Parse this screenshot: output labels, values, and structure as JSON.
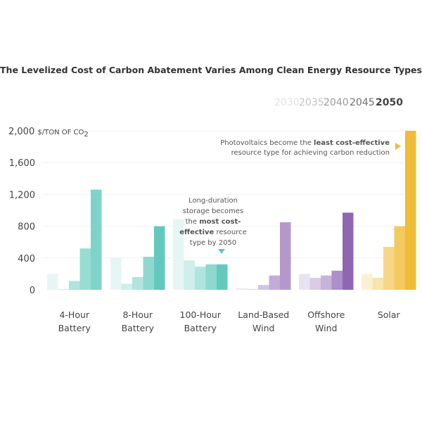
{
  "chart_data": {
    "type": "bar",
    "title": "The Levelized Cost of Carbon Abatement  Varies Among Clean Energy Resource Types",
    "ylabel_value": "2,000",
    "ylabel_unit": "$/TON OF CO",
    "ylabel_sub": "2",
    "ylim": [
      0,
      2000
    ],
    "yticks": [
      "0",
      "400",
      "800",
      "1,200",
      "1,600"
    ],
    "grid": true,
    "legend_position": "top-right",
    "years": [
      "2030",
      "2035",
      "2040",
      "2045",
      "2050"
    ],
    "year_colors": [
      "#e3e3e3",
      "#c4c4c4",
      "#9a9a9a",
      "#6f6f6f",
      "#444444"
    ],
    "categories": [
      {
        "line1": "4-Hour",
        "line2": "Battery"
      },
      {
        "line1": "8-Hour",
        "line2": "Battery"
      },
      {
        "line1": "100-Hour",
        "line2": "Battery"
      },
      {
        "line1": "Land-Based",
        "line2": "Wind"
      },
      {
        "line1": "Offshore",
        "line2": "Wind"
      },
      {
        "line1": "Solar",
        "line2": ""
      }
    ],
    "values": [
      [
        200,
        10,
        110,
        520,
        1260
      ],
      [
        400,
        75,
        160,
        415,
        800
      ],
      [
        890,
        370,
        290,
        320,
        320
      ],
      [
        20,
        10,
        60,
        180,
        850
      ],
      [
        200,
        150,
        180,
        240,
        970
      ],
      [
        200,
        150,
        540,
        800,
        2000
      ]
    ],
    "colors": [
      [
        "#e6f6f4",
        "#cdeeea",
        "#b0e4de",
        "#98dcd4",
        "#7fd3c9"
      ],
      [
        "#e6f6f4",
        "#cdeeea",
        "#b0e4de",
        "#8fd8cf",
        "#64c9bd"
      ],
      [
        "#e6f6f4",
        "#cdeeea",
        "#b0e4de",
        "#8fd8cf",
        "#64c9bd"
      ],
      [
        "#efe9f3",
        "#e3d8ec",
        "#d4c3e2",
        "#c3acd8",
        "#b498cb"
      ],
      [
        "#e9e2f0",
        "#d9cbe6",
        "#c7b2db",
        "#ab8fc9",
        "#8f67b1"
      ],
      [
        "#fcf0d4",
        "#f8e4ac",
        "#f6d788",
        "#f3ca5e",
        "#f0bb36"
      ]
    ],
    "annotations": {
      "storage": [
        "Long-duration",
        "storage becomes",
        "the ",
        "most cost-",
        "effective",
        " resource",
        "type by 2050"
      ],
      "solar": [
        "Photovoltaics become the ",
        "least cost-effective",
        "resource type for achieving carbon reduction"
      ]
    },
    "annotation_marker_colors": {
      "storage": "#5fc7bb",
      "solar": "#f0bb36"
    }
  }
}
